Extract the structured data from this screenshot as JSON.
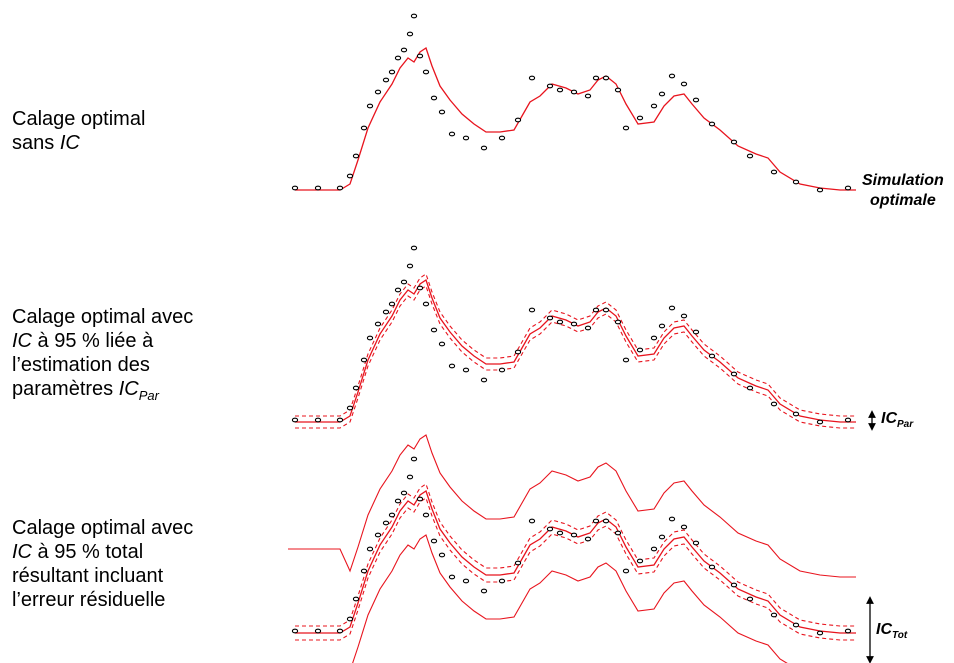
{
  "panels": [
    {
      "line1": "Calage optimal",
      "line2_prefix": "sans ",
      "line2_ic": "IC"
    },
    {
      "line1": "Calage optimal avec",
      "line2_ic": "IC",
      "line2_rest": " à 95 % liée à",
      "line3": "l’estimation des",
      "line4_prefix": "paramètres ",
      "line4_ic": "IC",
      "line4_sub": "Par"
    },
    {
      "line1": "Calage optimal avec",
      "line2_ic": "IC",
      "line2_rest": " à 95 % total",
      "line3": "résultant incluant",
      "line4": "l’erreur résiduelle"
    }
  ],
  "annotations": {
    "simulation_line1": "Simulation",
    "simulation_line2": "optimale",
    "ic_par": "IC",
    "ic_par_sub": "Par",
    "ic_tot": "IC",
    "ic_tot_sub": "Tot"
  },
  "colors": {
    "simulation_line": "#e8141e",
    "observation_marker": "#000000",
    "observation_fill": "#ffffff"
  }
}
